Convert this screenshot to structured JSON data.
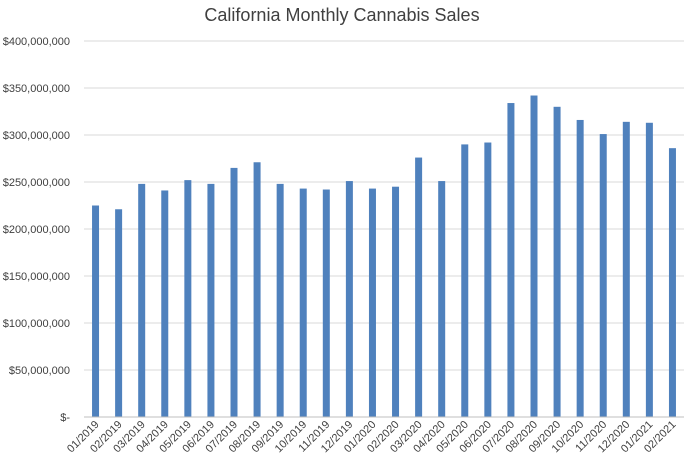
{
  "chart_data": {
    "type": "bar",
    "title": "California Monthly Cannabis Sales",
    "xlabel": "",
    "ylabel": "",
    "ylim": [
      0,
      400000000
    ],
    "yticks": [
      0,
      50000000,
      100000000,
      150000000,
      200000000,
      250000000,
      300000000,
      350000000,
      400000000
    ],
    "ytick_labels": [
      "$-",
      "$50,000,000",
      "$100,000,000",
      "$150,000,000",
      "$200,000,000",
      "$250,000,000",
      "$300,000,000",
      "$350,000,000",
      "$400,000,000"
    ],
    "grid": true,
    "bar_color": "#4f81bd",
    "categories": [
      "01/2019",
      "02/2019",
      "03/2019",
      "04/2019",
      "05/2019",
      "06/2019",
      "07/2019",
      "08/2019",
      "09/2019",
      "10/2019",
      "11/2019",
      "12/2019",
      "01/2020",
      "02/2020",
      "03/2020",
      "04/2020",
      "05/2020",
      "06/2020",
      "07/2020",
      "08/2020",
      "09/2020",
      "10/2020",
      "11/2020",
      "12/2020",
      "01/2021",
      "02/2021"
    ],
    "values": [
      225000000,
      221000000,
      248000000,
      241000000,
      252000000,
      248000000,
      265000000,
      271000000,
      248000000,
      243000000,
      242000000,
      251000000,
      243000000,
      245000000,
      276000000,
      251000000,
      290000000,
      292000000,
      334000000,
      342000000,
      330000000,
      316000000,
      301000000,
      314000000,
      313000000,
      286000000
    ]
  }
}
